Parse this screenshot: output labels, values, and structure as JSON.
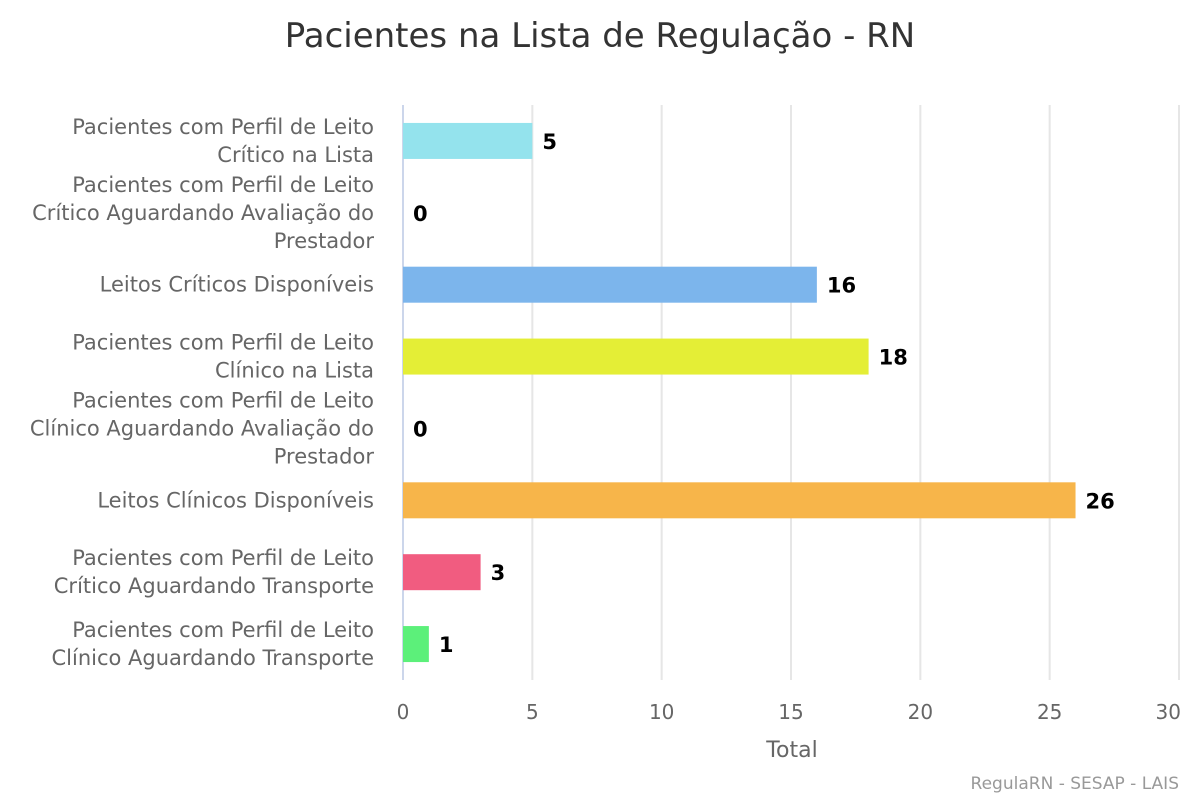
{
  "chart_data": {
    "type": "bar",
    "orientation": "horizontal",
    "title": "Pacientes na Lista de Regulação - RN",
    "xlabel": "Total",
    "ylabel": "",
    "xlim": [
      0,
      30
    ],
    "ticks": [
      0,
      5,
      10,
      15,
      20,
      25,
      30
    ],
    "grid": true,
    "legend": "none",
    "categories": [
      [
        "Pacientes com Perfil de Leito",
        "Crítico na Lista"
      ],
      [
        "Pacientes com Perfil de Leito",
        "Crítico Aguardando Avaliação do",
        "Prestador"
      ],
      [
        "Leitos Críticos Disponíveis"
      ],
      [
        "Pacientes com Perfil de Leito",
        "Clínico na Lista"
      ],
      [
        "Pacientes com Perfil de Leito",
        "Clínico Aguardando Avaliação do",
        "Prestador"
      ],
      [
        "Leitos Clínicos Disponíveis"
      ],
      [
        "Pacientes com Perfil de Leito",
        "Crítico Aguardando Transporte"
      ],
      [
        "Pacientes com Perfil de Leito",
        "Clínico Aguardando Transporte"
      ]
    ],
    "values": [
      5,
      0,
      16,
      18,
      0,
      26,
      3,
      1
    ],
    "colors": [
      "#94e3ed",
      "#c4c4c4",
      "#7cb5ec",
      "#e4ee36",
      "#a4a4a4",
      "#f7b54a",
      "#f15c80",
      "#5cf07a"
    ]
  },
  "credits": "RegulaRN - SESAP - LAIS"
}
